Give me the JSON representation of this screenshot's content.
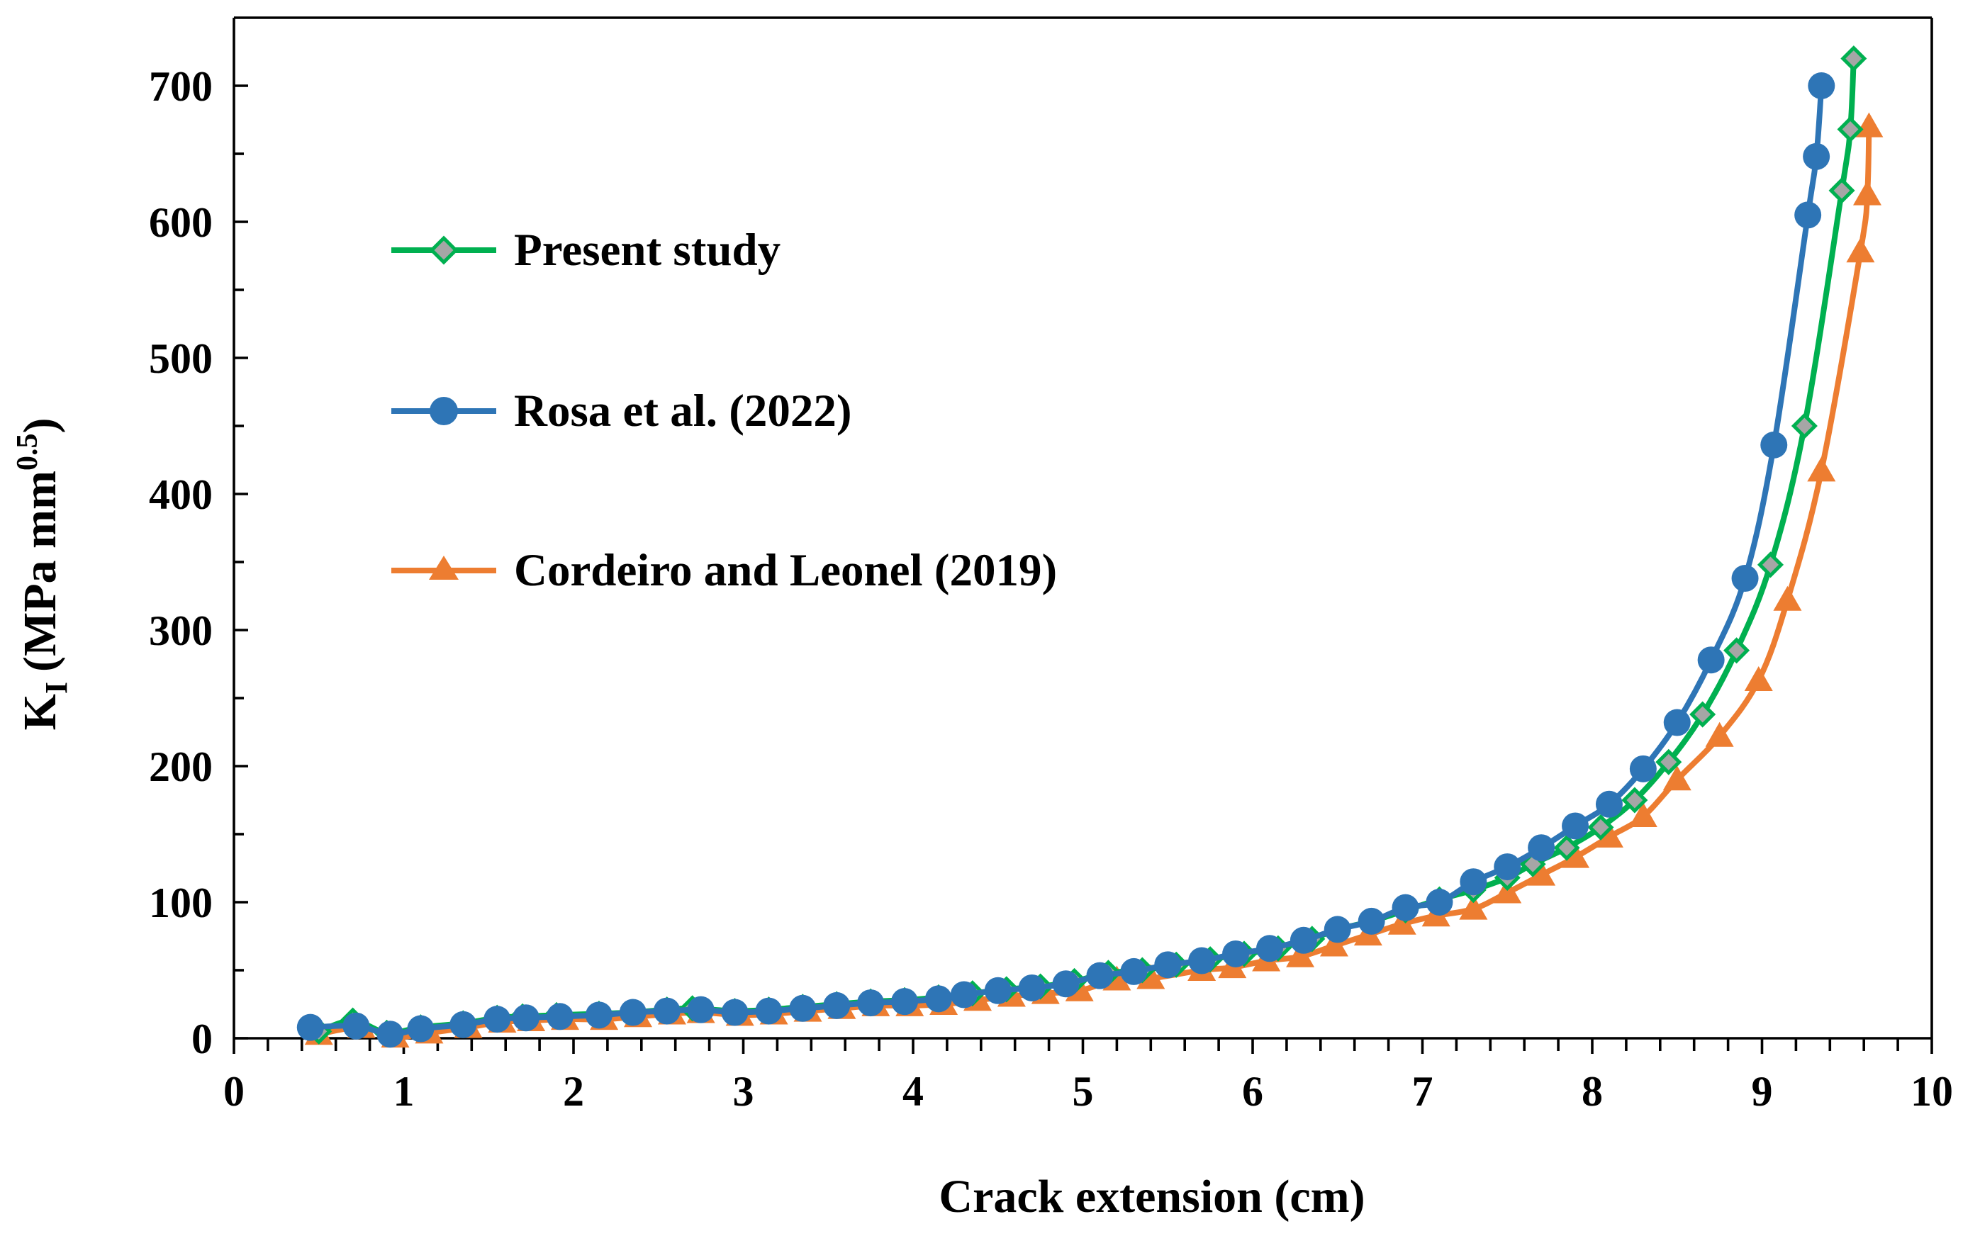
{
  "chart_data": {
    "type": "line",
    "title": "",
    "xlabel": "Crack extension (cm)",
    "ylabel": "K_I (MPa mm^0.5)",
    "ylabel_parts": {
      "k": "K",
      "k_sub": "I",
      "open": "(MPa mm",
      "exp": "0.5",
      "close": ")"
    },
    "xlim": [
      0,
      10
    ],
    "ylim": [
      0,
      750
    ],
    "x_ticks": [
      0,
      1,
      2,
      3,
      4,
      5,
      6,
      7,
      8,
      9,
      10
    ],
    "y_ticks": [
      0,
      100,
      200,
      300,
      400,
      500,
      600,
      700
    ],
    "x_tick_labels": [
      "0",
      "1",
      "2",
      "3",
      "4",
      "5",
      "6",
      "7",
      "8",
      "9",
      "10"
    ],
    "y_tick_labels": [
      "0",
      "100",
      "200",
      "300",
      "400",
      "500",
      "600",
      "700"
    ],
    "grid": false,
    "legend_position": "top-left",
    "series": [
      {
        "name": "Present study",
        "color": "#00B050",
        "marker": "diamond",
        "marker_fill": "#A6A6A6",
        "x": [
          0.5,
          0.7,
          0.9,
          1.1,
          1.35,
          1.55,
          1.7,
          1.9,
          2.15,
          2.35,
          2.55,
          2.7,
          2.95,
          3.15,
          3.35,
          3.55,
          3.75,
          3.95,
          4.15,
          4.35,
          4.55,
          4.75,
          4.95,
          5.15,
          5.35,
          5.55,
          5.75,
          5.95,
          6.15,
          6.35,
          6.5,
          6.7,
          6.9,
          7.1,
          7.3,
          7.5,
          7.65,
          7.85,
          8.05,
          8.25,
          8.45,
          8.65,
          8.85,
          9.05,
          9.25,
          9.47,
          9.52,
          9.54
        ],
        "y": [
          5,
          13,
          4,
          8,
          11,
          15,
          16,
          17,
          18,
          19,
          21,
          22,
          20,
          21,
          23,
          25,
          27,
          28,
          30,
          33,
          36,
          38,
          42,
          48,
          50,
          54,
          58,
          62,
          66,
          73,
          80,
          86,
          94,
          102,
          109,
          118,
          128,
          140,
          155,
          175,
          203,
          238,
          285,
          348,
          450,
          623,
          668,
          720
        ]
      },
      {
        "name": "Rosa et al. (2022)",
        "color": "#2E75B6",
        "marker": "circle",
        "marker_fill": "#2E75B6",
        "x": [
          0.45,
          0.72,
          0.92,
          1.1,
          1.35,
          1.55,
          1.72,
          1.92,
          2.15,
          2.35,
          2.55,
          2.75,
          2.95,
          3.15,
          3.35,
          3.55,
          3.75,
          3.95,
          4.15,
          4.3,
          4.5,
          4.7,
          4.9,
          5.1,
          5.3,
          5.5,
          5.7,
          5.9,
          6.1,
          6.3,
          6.5,
          6.7,
          6.9,
          7.1,
          7.3,
          7.5,
          7.7,
          7.9,
          8.1,
          8.3,
          8.5,
          8.7,
          8.9,
          9.07,
          9.27,
          9.32,
          9.35
        ],
        "y": [
          8,
          9,
          3,
          7,
          10,
          14,
          15,
          16,
          17,
          19,
          20,
          21,
          19,
          20,
          22,
          24,
          26,
          27,
          29,
          32,
          35,
          37,
          40,
          46,
          49,
          54,
          57,
          62,
          66,
          72,
          80,
          86,
          96,
          100,
          115,
          126,
          140,
          156,
          172,
          198,
          232,
          278,
          338,
          436,
          605,
          648,
          700
        ]
      },
      {
        "name": "Cordeiro and Leonel (2019)",
        "color": "#ED7D31",
        "marker": "triangle",
        "marker_fill": "#ED7D31",
        "x": [
          0.5,
          0.75,
          0.95,
          1.15,
          1.38,
          1.58,
          1.75,
          1.95,
          2.18,
          2.38,
          2.58,
          2.75,
          2.98,
          3.18,
          3.38,
          3.58,
          3.78,
          3.98,
          4.18,
          4.38,
          4.58,
          4.78,
          4.98,
          5.2,
          5.4,
          5.7,
          5.88,
          6.08,
          6.28,
          6.48,
          6.68,
          6.88,
          7.08,
          7.3,
          7.5,
          7.7,
          7.9,
          8.1,
          8.3,
          8.5,
          8.75,
          8.98,
          9.15,
          9.35,
          9.58,
          9.62,
          9.63
        ],
        "y": [
          3,
          8,
          1,
          4,
          8,
          12,
          13,
          14,
          14,
          16,
          18,
          19,
          17,
          18,
          20,
          22,
          24,
          24,
          25,
          28,
          31,
          33,
          35,
          43,
          44,
          50,
          52,
          57,
          60,
          68,
          76,
          84,
          90,
          95,
          107,
          120,
          133,
          148,
          163,
          190,
          222,
          263,
          322,
          417,
          578,
          620,
          670
        ]
      }
    ]
  }
}
